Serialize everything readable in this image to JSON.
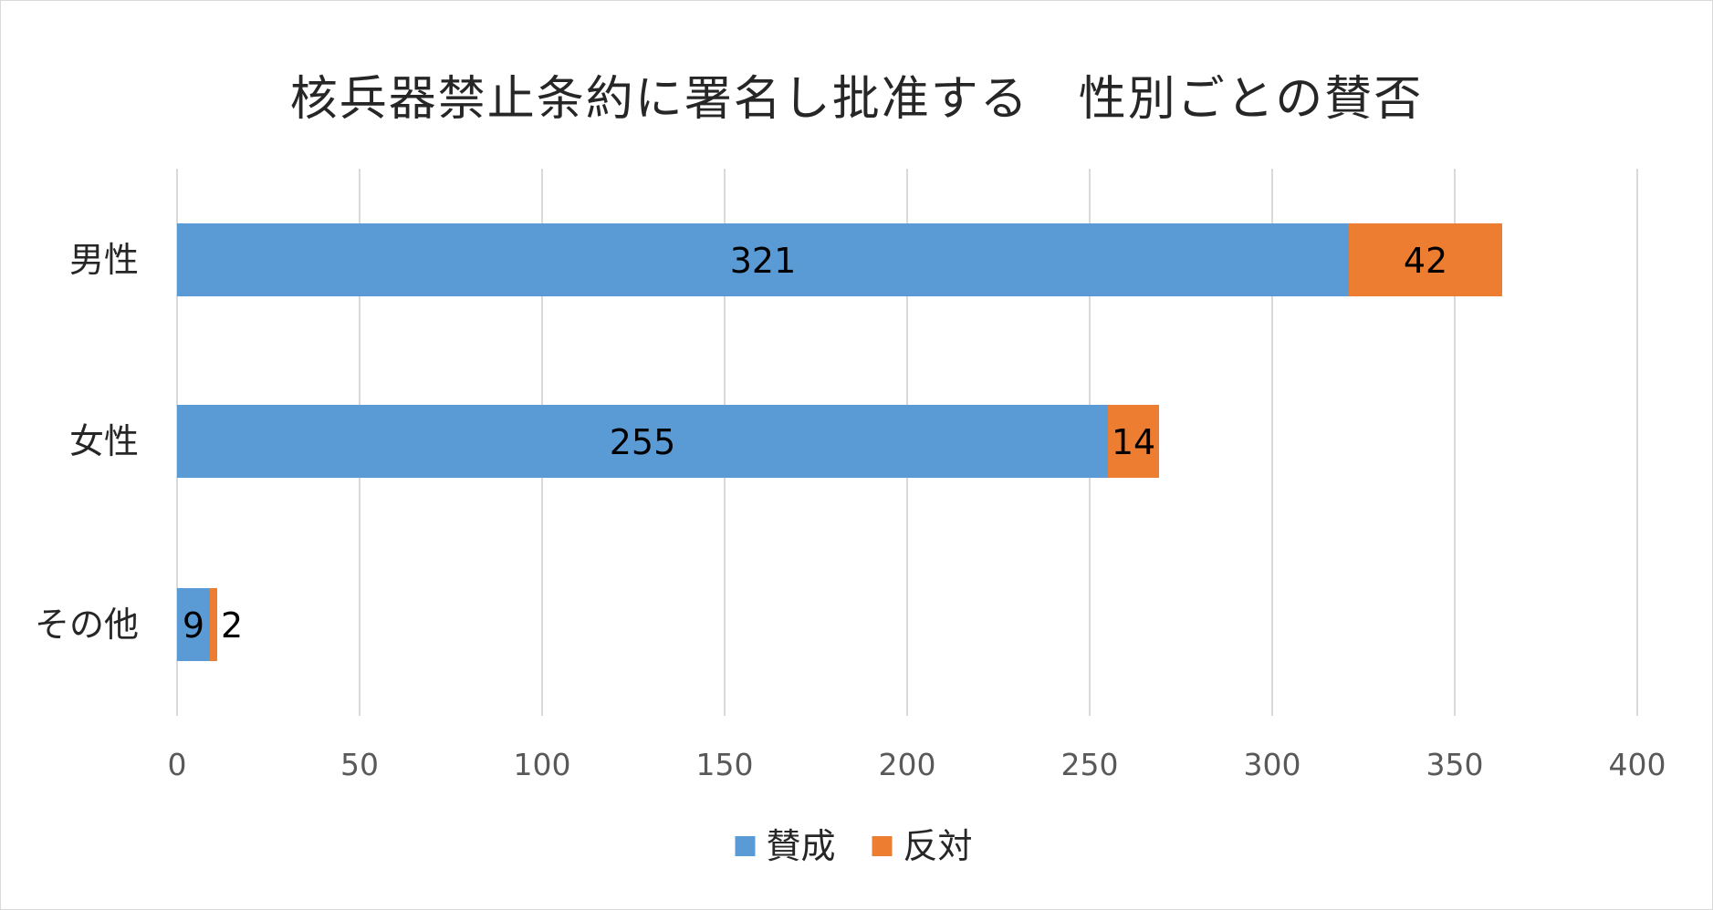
{
  "chart_data": {
    "type": "bar",
    "orientation": "horizontal",
    "stacked": true,
    "title": "核兵器禁止条約に署名し批准する　性別ごとの賛否",
    "categories": [
      "男性",
      "女性",
      "その他"
    ],
    "series": [
      {
        "name": "賛成",
        "values": [
          321,
          255,
          9
        ],
        "color": "#5b9bd5"
      },
      {
        "name": "反対",
        "values": [
          42,
          14,
          2
        ],
        "color": "#ed7d31"
      }
    ],
    "xlim": [
      0,
      400
    ],
    "xticks": [
      0,
      50,
      100,
      150,
      200,
      250,
      300,
      350,
      400
    ],
    "grid": "vertical",
    "legend": "bottom",
    "data_labels": true
  }
}
